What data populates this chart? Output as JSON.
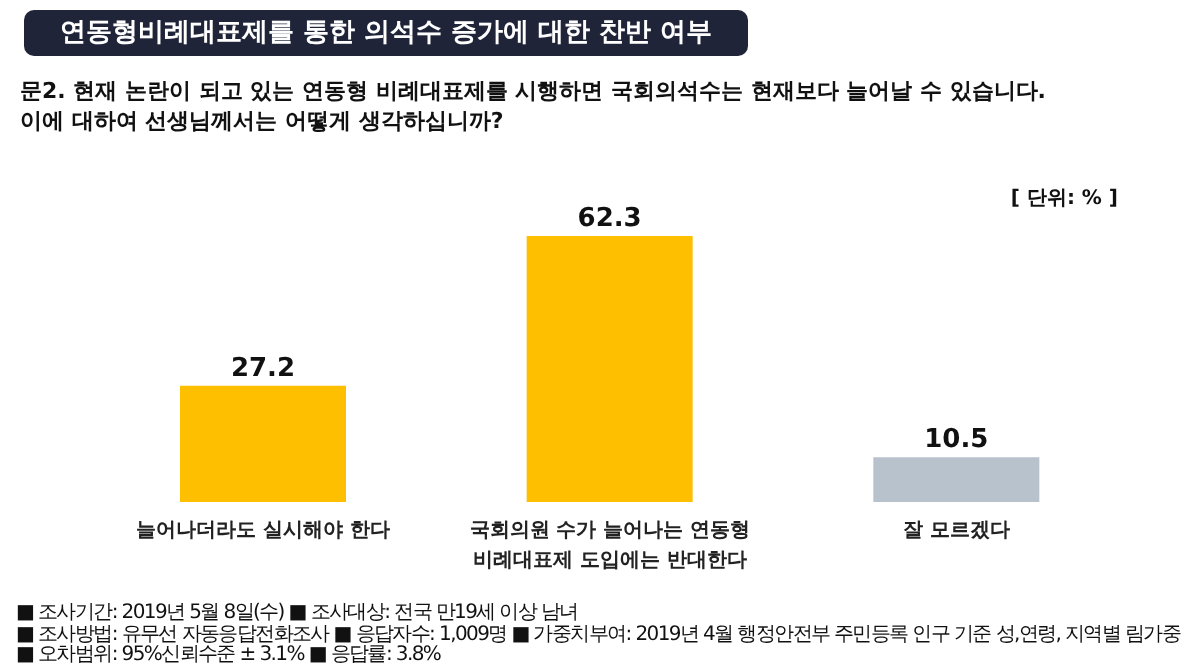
{
  "chart_data": {
    "type": "bar",
    "title": "연동형비례대표제를 통한 의석수 증가에 대한 찬반 여부",
    "subtitle": "문2. 현재 논란이 되고 있는 연동형 비례대표제를 시행하면 국회의석수는 현재보다 늘어날 수 있습니다.\n이에 대하여 선생님께서는 어떻게 생각하십니까?",
    "categories": [
      "늘어나더라도 실시해야 한다",
      "국회의원 수가 늘어나는 연동형 비례대표제 도입에는 반대한다",
      "잘 모르겠다"
    ],
    "values": [
      27.2,
      62.3,
      10.5
    ],
    "colors": [
      "#fdbf00",
      "#fdbf00",
      "#b8c2cc"
    ],
    "data_labels": true,
    "annotations": [
      "[ 단위: % ]",
      "■ 조사기간: 2019년 5월 8일(수) ■ 조사대상: 전국 만19세 이상 남녀",
      "■ 조사방법: 유무선 자동응답전화조사 ■ 응답자수: 1,009명 ■ 가중치부여: 2019년 4월 행정안전부 주민등록 인구 기준 성,연령, 지역별 림가중",
      "■ 오차범위: 95%신뢰수준 ± 3.1% ■ 응답률: 3.8%"
    ]
  }
}
